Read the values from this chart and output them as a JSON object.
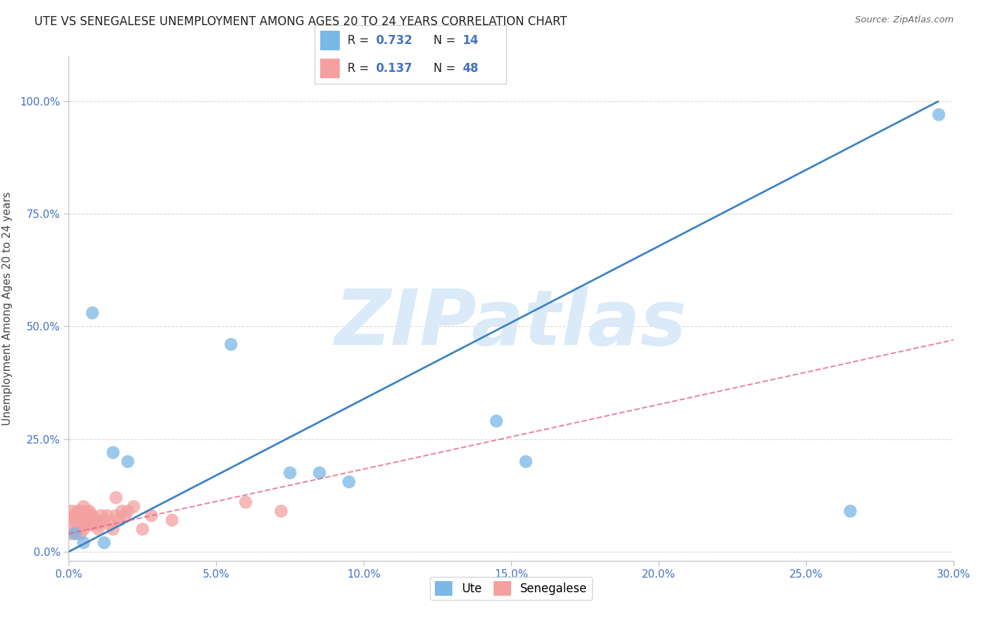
{
  "title": "UTE VS SENEGALESE UNEMPLOYMENT AMONG AGES 20 TO 24 YEARS CORRELATION CHART",
  "source": "Source: ZipAtlas.com",
  "ylabel": "Unemployment Among Ages 20 to 24 years",
  "xlim": [
    0.0,
    0.3
  ],
  "ylim": [
    -0.02,
    1.1
  ],
  "xticks": [
    0.0,
    0.05,
    0.1,
    0.15,
    0.2,
    0.25,
    0.3
  ],
  "xticklabels": [
    "0.0%",
    "5.0%",
    "10.0%",
    "15.0%",
    "20.0%",
    "25.0%",
    "30.0%"
  ],
  "yticks": [
    0.0,
    0.25,
    0.5,
    0.75,
    1.0
  ],
  "yticklabels": [
    "0.0%",
    "25.0%",
    "50.0%",
    "75.0%",
    "100.0%"
  ],
  "ute_color": "#7ab8e8",
  "senegalese_color": "#f4a0a0",
  "ute_line_color": "#3b82c4",
  "senegalese_line_color": "#e06080",
  "watermark_color": "#daeaf8",
  "watermark_text": "ZIPatlas",
  "legend_R_ute": "R = 0.732",
  "legend_N_ute": "N = 14",
  "legend_R_sen": "R = 0.137",
  "legend_N_sen": "N = 48",
  "background_color": "#ffffff",
  "grid_color": "#d0d0d0",
  "ute_line_x": [
    0.0,
    0.295
  ],
  "ute_line_y": [
    0.0,
    1.0
  ],
  "sen_line_x": [
    0.0,
    0.3
  ],
  "sen_line_y": [
    0.04,
    0.47
  ],
  "ute_x": [
    0.002,
    0.005,
    0.008,
    0.012,
    0.015,
    0.02,
    0.055,
    0.075,
    0.085,
    0.095,
    0.145,
    0.155,
    0.265,
    0.295
  ],
  "ute_y": [
    0.04,
    0.02,
    0.53,
    0.02,
    0.22,
    0.2,
    0.46,
    0.175,
    0.175,
    0.155,
    0.29,
    0.2,
    0.09,
    0.97
  ],
  "senegalese_x": [
    0.001,
    0.001,
    0.001,
    0.002,
    0.002,
    0.002,
    0.003,
    0.003,
    0.003,
    0.003,
    0.003,
    0.004,
    0.004,
    0.004,
    0.004,
    0.005,
    0.005,
    0.005,
    0.005,
    0.006,
    0.006,
    0.006,
    0.007,
    0.007,
    0.007,
    0.007,
    0.008,
    0.008,
    0.009,
    0.01,
    0.01,
    0.011,
    0.012,
    0.013,
    0.014,
    0.015,
    0.016,
    0.016,
    0.017,
    0.018,
    0.019,
    0.02,
    0.022,
    0.025,
    0.028,
    0.035,
    0.06,
    0.072
  ],
  "senegalese_y": [
    0.07,
    0.09,
    0.04,
    0.07,
    0.08,
    0.05,
    0.09,
    0.08,
    0.06,
    0.05,
    0.04,
    0.08,
    0.09,
    0.06,
    0.04,
    0.1,
    0.08,
    0.07,
    0.05,
    0.09,
    0.08,
    0.07,
    0.08,
    0.07,
    0.09,
    0.06,
    0.08,
    0.06,
    0.07,
    0.06,
    0.05,
    0.08,
    0.07,
    0.08,
    0.06,
    0.05,
    0.12,
    0.08,
    0.07,
    0.09,
    0.08,
    0.09,
    0.1,
    0.05,
    0.08,
    0.07,
    0.11,
    0.09
  ],
  "tick_color": "#4472c4",
  "axis_label_color": "#444444",
  "title_color": "#222222",
  "source_color": "#666666"
}
